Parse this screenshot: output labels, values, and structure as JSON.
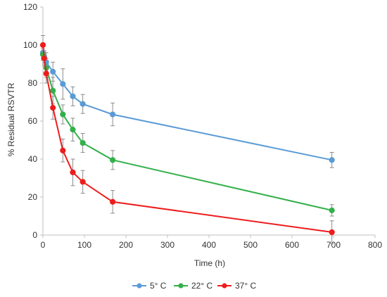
{
  "chart_data": {
    "type": "line",
    "title": "",
    "xlabel": "Time (h)",
    "ylabel": "% Residual RSVTR",
    "xlim": [
      0,
      800
    ],
    "ylim": [
      0,
      120
    ],
    "xticks": [
      0,
      100,
      200,
      300,
      400,
      500,
      600,
      700,
      800
    ],
    "yticks": [
      0,
      20,
      40,
      60,
      80,
      100,
      120
    ],
    "grid": false,
    "legend_position": "bottom",
    "series": [
      {
        "name": "5° C",
        "color": "#5b9bd5",
        "points": [
          {
            "x": 0,
            "y": 96,
            "err": 3
          },
          {
            "x": 3,
            "y": 94,
            "err": 3
          },
          {
            "x": 8,
            "y": 91,
            "err": 5
          },
          {
            "x": 24,
            "y": 86,
            "err": 5
          },
          {
            "x": 48,
            "y": 79.5,
            "err": 8
          },
          {
            "x": 72,
            "y": 73,
            "err": 5
          },
          {
            "x": 96,
            "y": 69,
            "err": 5
          },
          {
            "x": 168,
            "y": 63.5,
            "err": 6
          },
          {
            "x": 696,
            "y": 39.5,
            "err": 4
          }
        ]
      },
      {
        "name": "22° C",
        "color": "#33b04a",
        "points": [
          {
            "x": 0,
            "y": 95,
            "err": 3
          },
          {
            "x": 3,
            "y": 93,
            "err": 3
          },
          {
            "x": 8,
            "y": 88,
            "err": 5
          },
          {
            "x": 24,
            "y": 76,
            "err": 7
          },
          {
            "x": 48,
            "y": 63.5,
            "err": 5
          },
          {
            "x": 72,
            "y": 55.5,
            "err": 6
          },
          {
            "x": 96,
            "y": 48.5,
            "err": 5
          },
          {
            "x": 168,
            "y": 39.5,
            "err": 5
          },
          {
            "x": 696,
            "y": 13,
            "err": 3
          }
        ]
      },
      {
        "name": "37° C",
        "color": "#ee1c1c",
        "points": [
          {
            "x": 0,
            "y": 100,
            "err": 5
          },
          {
            "x": 3,
            "y": 93,
            "err": 4
          },
          {
            "x": 8,
            "y": 85,
            "err": 5
          },
          {
            "x": 24,
            "y": 67,
            "err": 6
          },
          {
            "x": 48,
            "y": 44.5,
            "err": 6
          },
          {
            "x": 72,
            "y": 33,
            "err": 7
          },
          {
            "x": 96,
            "y": 28,
            "err": 6
          },
          {
            "x": 168,
            "y": 17.5,
            "err": 6
          },
          {
            "x": 696,
            "y": 1.5,
            "err": 6
          }
        ]
      }
    ]
  }
}
